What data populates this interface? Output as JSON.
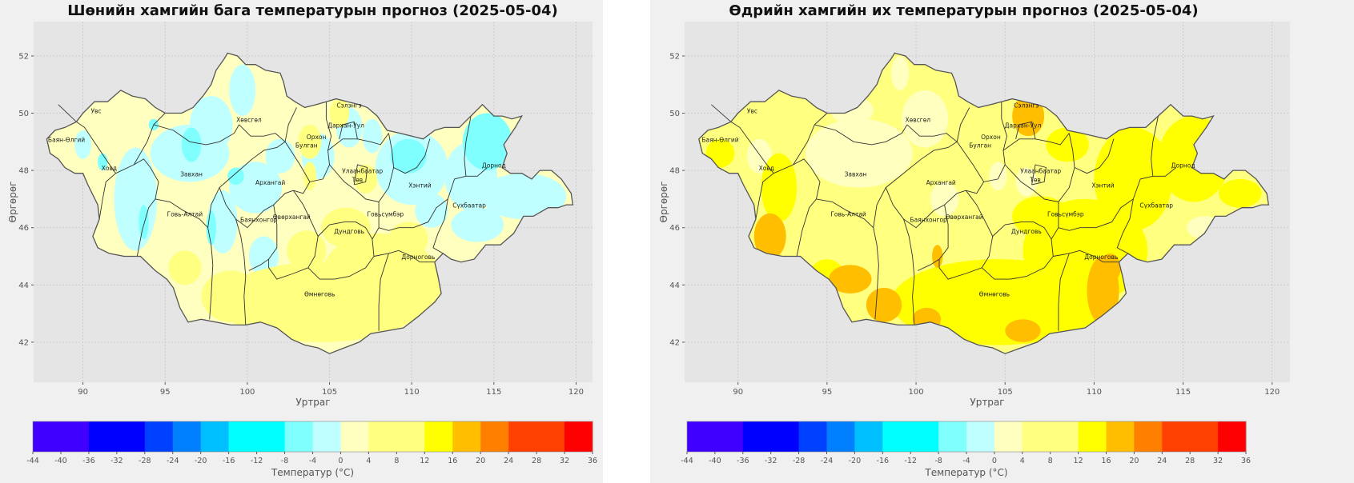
{
  "panels": [
    {
      "title": "Шөнийн хамгийн бага температурын прогноз (2025-05-04)",
      "xlabel": "Уртраг",
      "ylabel": "Өргөрөг",
      "colorbar_label": "Температур (°C)"
    },
    {
      "title": "Өдрийн хамгийн их температурын прогноз (2025-05-04)",
      "xlabel": "Уртраг",
      "ylabel": "Өргөрөг",
      "colorbar_label": "Температур (°C)"
    }
  ],
  "axes": {
    "x_ticks": [
      90,
      95,
      100,
      105,
      110,
      115,
      120
    ],
    "y_ticks": [
      42,
      44,
      46,
      48,
      50,
      52
    ],
    "xlim": [
      87.0,
      121.0
    ],
    "ylim": [
      40.6,
      53.2
    ],
    "grid": true
  },
  "colorbar": {
    "ticks": [
      -44,
      -40,
      -36,
      -32,
      -28,
      -24,
      -20,
      -16,
      -12,
      -8,
      -4,
      0,
      4,
      8,
      12,
      16,
      20,
      24,
      28,
      32,
      36
    ],
    "boundaries": [
      -44,
      -36,
      -28,
      -24,
      -20,
      -16,
      -8,
      -4,
      0,
      4,
      12,
      16,
      20,
      24,
      32,
      36
    ],
    "colors": [
      "#4000ff",
      "#0000ff",
      "#0040ff",
      "#0080ff",
      "#00bfff",
      "#00ffff",
      "#80ffff",
      "#bfffff",
      "#ffffbf",
      "#ffff80",
      "#ffff00",
      "#ffbf00",
      "#ff8000",
      "#ff4000",
      "#ff0000"
    ]
  },
  "provinces": [
    {
      "name": "Увс",
      "lon": 90.8,
      "lat": 50.0
    },
    {
      "name": "Баян-Өлгий",
      "lon": 89.0,
      "lat": 49.0
    },
    {
      "name": "Ховд",
      "lon": 91.6,
      "lat": 48.0
    },
    {
      "name": "Завхан",
      "lon": 96.6,
      "lat": 47.8
    },
    {
      "name": "Говь-Алтай",
      "lon": 96.2,
      "lat": 46.4
    },
    {
      "name": "Хөвсгөл",
      "lon": 100.1,
      "lat": 49.7
    },
    {
      "name": "Архангай",
      "lon": 101.4,
      "lat": 47.5
    },
    {
      "name": "Баянхонгор",
      "lon": 100.7,
      "lat": 46.2
    },
    {
      "name": "Өвөрхангай",
      "lon": 102.7,
      "lat": 46.3
    },
    {
      "name": "Булган",
      "lon": 103.6,
      "lat": 48.8
    },
    {
      "name": "Орхон",
      "lon": 104.2,
      "lat": 49.1
    },
    {
      "name": "Сэлэнгэ",
      "lon": 106.2,
      "lat": 50.2
    },
    {
      "name": "Дархан-Уул",
      "lon": 106.0,
      "lat": 49.5
    },
    {
      "name": "Улаанбаатар",
      "lon": 107.0,
      "lat": 47.9
    },
    {
      "name": "Төв",
      "lon": 106.7,
      "lat": 47.6
    },
    {
      "name": "Хэнтий",
      "lon": 110.5,
      "lat": 47.4
    },
    {
      "name": "Дорнод",
      "lon": 115.0,
      "lat": 48.1
    },
    {
      "name": "Сүхбаатар",
      "lon": 113.5,
      "lat": 46.7
    },
    {
      "name": "Говьсүмбэр",
      "lon": 108.4,
      "lat": 46.4
    },
    {
      "name": "Дундговь",
      "lon": 106.2,
      "lat": 45.8
    },
    {
      "name": "Дорноговь",
      "lon": 110.4,
      "lat": 44.9
    },
    {
      "name": "Өмнөговь",
      "lon": 104.4,
      "lat": 43.6
    }
  ],
  "colors": {
    "axes_bg": "#e5e5e5",
    "grid": "#c8c8c8",
    "fig_bg": "#f0f0f0",
    "border": "#555555"
  }
}
